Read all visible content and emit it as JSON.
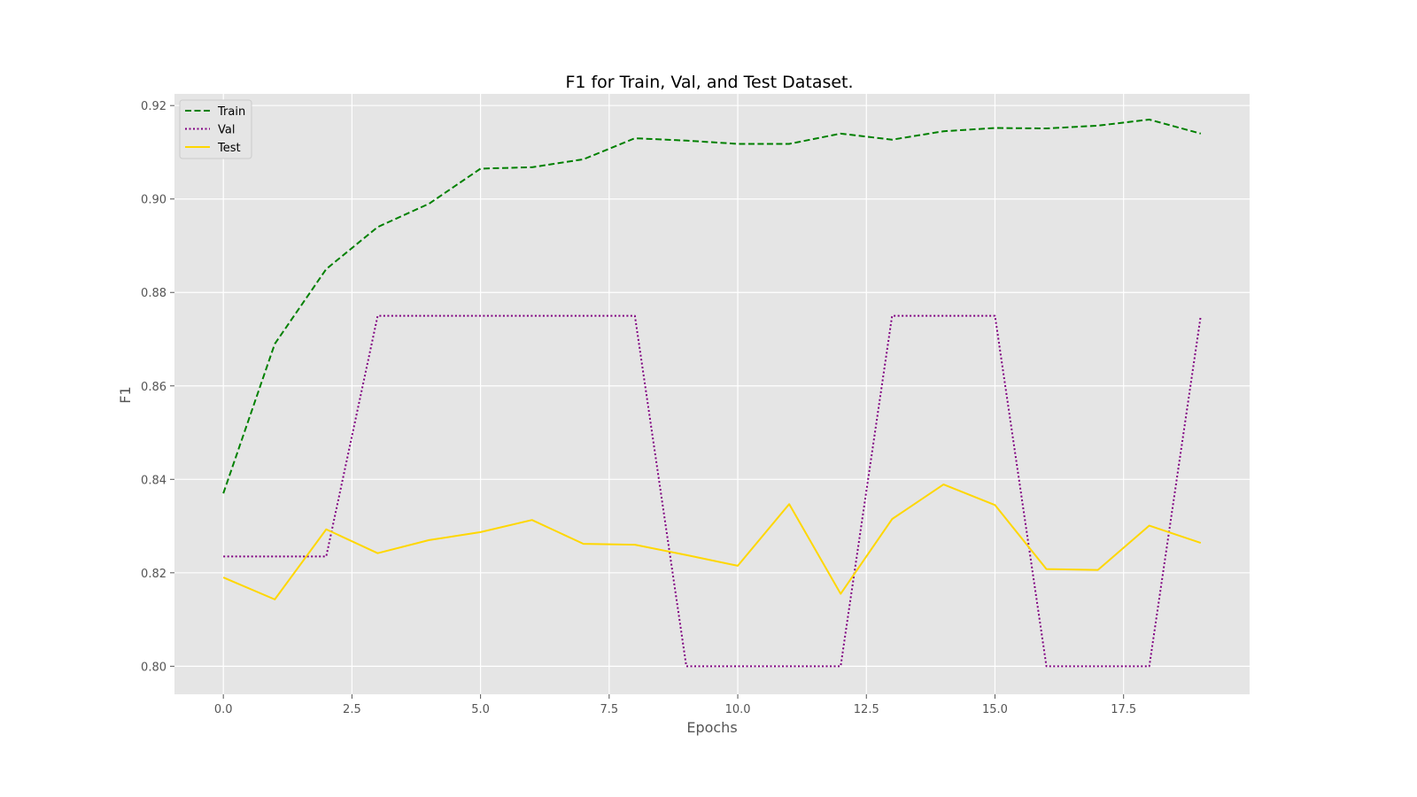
{
  "chart_data": {
    "type": "line",
    "title": "F1 for Train, Val, and Test Dataset.",
    "xlabel": "Epochs",
    "ylabel": "F1",
    "xlim": [
      -0.95,
      19.95
    ],
    "ylim": [
      0.794,
      0.9225
    ],
    "xticks": [
      0.0,
      2.5,
      5.0,
      7.5,
      10.0,
      12.5,
      15.0,
      17.5
    ],
    "xtick_labels": [
      "0.0",
      "2.5",
      "5.0",
      "7.5",
      "10.0",
      "12.5",
      "15.0",
      "17.5"
    ],
    "yticks": [
      0.8,
      0.82,
      0.84,
      0.86,
      0.88,
      0.9,
      0.92
    ],
    "ytick_labels": [
      "0.80",
      "0.82",
      "0.84",
      "0.86",
      "0.88",
      "0.90",
      "0.92"
    ],
    "grid": true,
    "legend_position": "top-left",
    "x": [
      0,
      1,
      2,
      3,
      4,
      5,
      6,
      7,
      8,
      9,
      10,
      11,
      12,
      13,
      14,
      15,
      16,
      17,
      18,
      19
    ],
    "series": [
      {
        "name": "Train",
        "color": "#008000",
        "style": "dashed",
        "values": [
          0.837,
          0.869,
          0.885,
          0.894,
          0.899,
          0.9065,
          0.9068,
          0.9085,
          0.913,
          0.9125,
          0.9118,
          0.9118,
          0.914,
          0.9127,
          0.9145,
          0.9152,
          0.9151,
          0.9157,
          0.917,
          0.914
        ]
      },
      {
        "name": "Val",
        "color": "#800080",
        "style": "dotted",
        "values": [
          0.8235,
          0.8235,
          0.8235,
          0.875,
          0.875,
          0.875,
          0.875,
          0.875,
          0.875,
          0.8,
          0.8,
          0.8,
          0.8,
          0.875,
          0.875,
          0.875,
          0.8,
          0.8,
          0.8,
          0.875
        ]
      },
      {
        "name": "Test",
        "color": "#ffd700",
        "style": "solid",
        "values": [
          0.819,
          0.8143,
          0.8293,
          0.8242,
          0.827,
          0.8287,
          0.8313,
          0.8262,
          0.826,
          0.8238,
          0.8215,
          0.8347,
          0.8155,
          0.8315,
          0.8389,
          0.8345,
          0.8208,
          0.8206,
          0.8301,
          0.8264
        ]
      }
    ]
  }
}
